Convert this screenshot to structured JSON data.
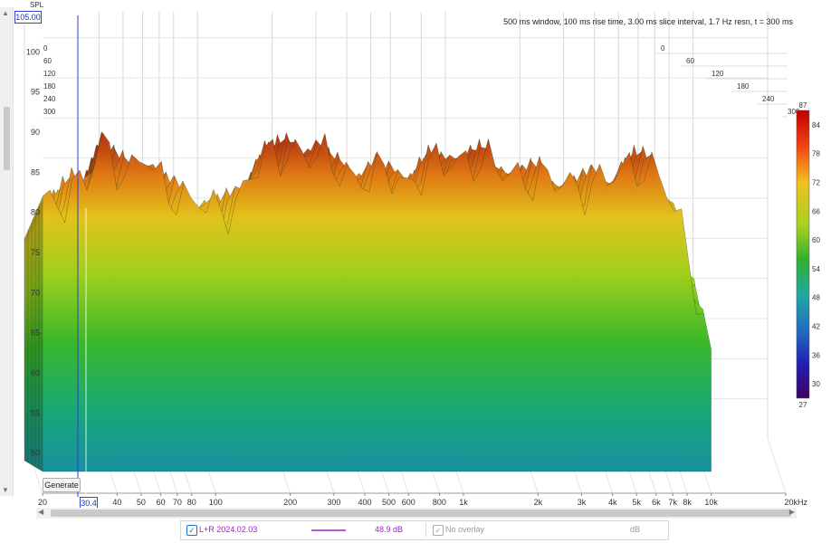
{
  "window": {
    "info": "500 ms window, 100 ms rise time, 3.00 ms slice interval, 1.7 Hz resn, t = 300 ms"
  },
  "readouts": {
    "spl_label": "SPL",
    "spl_cursor": "105.00",
    "freq_cursor": "30.4"
  },
  "buttons": {
    "generate": "Generate"
  },
  "legend": {
    "trace_check": "✓",
    "trace_label": "L+R 2024.02.03",
    "trace_value": "48.9 dB",
    "overlay_check": "✓",
    "overlay_label": "No overlay",
    "overlay_unit": "dB"
  },
  "colors": {
    "trace_line": "#a020c8",
    "cursor": "#2b3fd6",
    "accent": "#1f6fcf"
  },
  "chart_data": {
    "type": "area",
    "subtype": "waterfall",
    "x_scale": "log",
    "xlim": [
      20,
      20000
    ],
    "ylim": [
      45,
      105
    ],
    "x_tick_labels": [
      {
        "v": 20,
        "t": "20"
      },
      {
        "v": 40,
        "t": "40"
      },
      {
        "v": 50,
        "t": "50"
      },
      {
        "v": 60,
        "t": "60"
      },
      {
        "v": 70,
        "t": "70"
      },
      {
        "v": 80,
        "t": "80"
      },
      {
        "v": 100,
        "t": "100"
      },
      {
        "v": 200,
        "t": "200"
      },
      {
        "v": 300,
        "t": "300"
      },
      {
        "v": 400,
        "t": "400"
      },
      {
        "v": 500,
        "t": "500"
      },
      {
        "v": 600,
        "t": "600"
      },
      {
        "v": 800,
        "t": "800"
      },
      {
        "v": 1000,
        "t": "1k"
      },
      {
        "v": 2000,
        "t": "2k"
      },
      {
        "v": 3000,
        "t": "3k"
      },
      {
        "v": 4000,
        "t": "4k"
      },
      {
        "v": 5000,
        "t": "5k"
      },
      {
        "v": 6000,
        "t": "6k"
      },
      {
        "v": 7000,
        "t": "7k"
      },
      {
        "v": 8000,
        "t": "8k"
      },
      {
        "v": 10000,
        "t": "10k"
      },
      {
        "v": 20000,
        "t": "20kHz"
      }
    ],
    "y_ticks": [
      50,
      55,
      60,
      65,
      70,
      75,
      80,
      85,
      90,
      95,
      100
    ],
    "time_axis_ms": [
      0,
      60,
      120,
      180,
      240,
      300
    ],
    "colorbar": {
      "min": 27,
      "max": 87,
      "ticks": [
        30,
        36,
        42,
        48,
        54,
        60,
        66,
        72,
        78,
        84
      ]
    },
    "front_slice": {
      "freq_hz": [
        20,
        22,
        25,
        28,
        31,
        35,
        40,
        45,
        50,
        55,
        60,
        70,
        80,
        100,
        120,
        150,
        200,
        250,
        300,
        400,
        500,
        600,
        800,
        1000,
        1500,
        2000,
        3000,
        4000,
        5000,
        6000,
        7000,
        8000,
        10000
      ],
      "spl_db": [
        82,
        81,
        82,
        83,
        84,
        89,
        86,
        84,
        87,
        85,
        84,
        82,
        81,
        80,
        81,
        86,
        88,
        87,
        86,
        84,
        85,
        84,
        86,
        87,
        85,
        84,
        83,
        84,
        86,
        85,
        83,
        80,
        70
      ]
    }
  }
}
